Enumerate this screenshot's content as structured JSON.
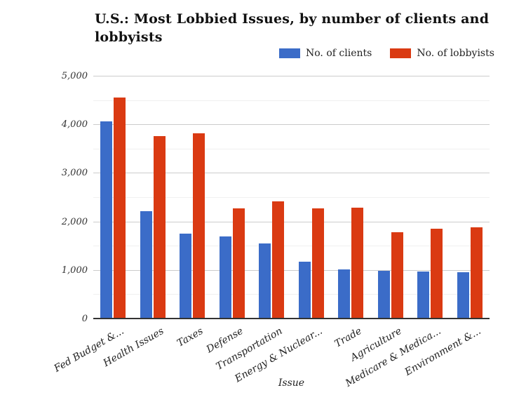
{
  "title": {
    "lines": [
      "U.S.: Most Lobbied Issues, by number of clients and",
      "lobbyists"
    ]
  },
  "chart_data": {
    "type": "bar",
    "grouped": true,
    "title": "U.S.: Most Lobbied Issues, by number of clients and lobbyists",
    "xlabel": "Issue",
    "ylabel": "",
    "ylim": [
      0,
      5000
    ],
    "grid": true,
    "legend_position": "top-right",
    "ytick_step_major": 1000,
    "ytick_step_minor": 500,
    "yticks": [
      {
        "value": 0,
        "label": "0"
      },
      {
        "value": 1000,
        "label": "1,000"
      },
      {
        "value": 2000,
        "label": "2,000"
      },
      {
        "value": 3000,
        "label": "3,000"
      },
      {
        "value": 4000,
        "label": "4,000"
      },
      {
        "value": 5000,
        "label": "5,000"
      }
    ],
    "categories": [
      "Fed Budget &...",
      "Health Issues",
      "Taxes",
      "Defense",
      "Transportation",
      "Energy & Nuclear...",
      "Trade",
      "Agriculture",
      "Medicare & Medica...",
      "Environment &..."
    ],
    "series": [
      {
        "name": "No. of clients",
        "color": "#3b6cc8",
        "values": [
          4080,
          2230,
          1760,
          1700,
          1560,
          1190,
          1030,
          1000,
          990,
          975
        ]
      },
      {
        "name": "No. of lobbyists",
        "color": "#da3a12",
        "values": [
          4570,
          3770,
          3830,
          2290,
          2430,
          2280,
          2300,
          1790,
          1860,
          1900
        ]
      }
    ]
  },
  "colors": {
    "background": "#ffffff",
    "gridline_major": "#cccccc",
    "gridline_minor": "#f0f0f0",
    "axis_baseline": "#333333",
    "title_text": "#111111",
    "axis_text": "#333333"
  }
}
